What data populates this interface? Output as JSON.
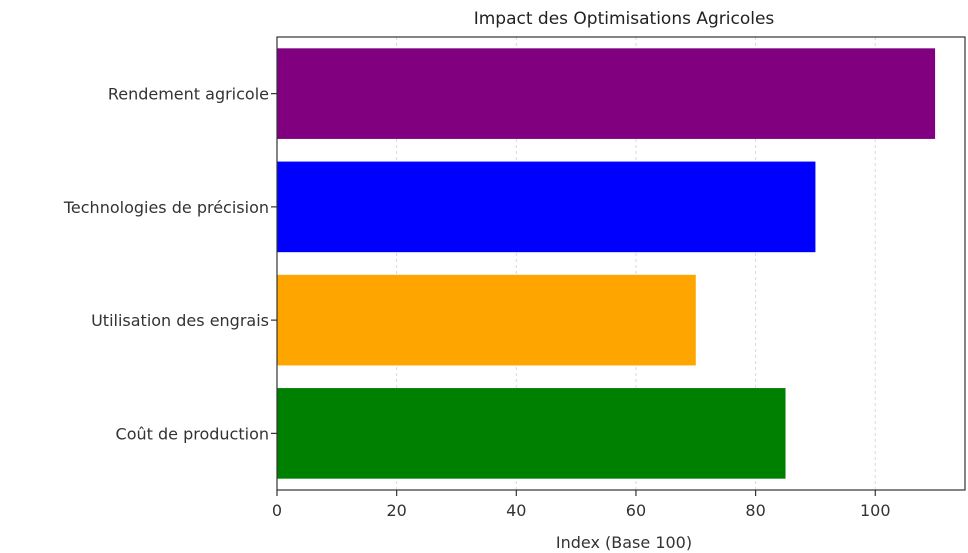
{
  "chart_data": {
    "type": "bar",
    "orientation": "horizontal",
    "title": "Impact des Optimisations Agricoles",
    "xlabel": "Index (Base 100)",
    "ylabel": "",
    "xlim": [
      0,
      115
    ],
    "xticks": [
      0,
      20,
      40,
      60,
      80,
      100
    ],
    "grid": "x-dashed",
    "categories": [
      "Rendement agricole",
      "Technologies de précision",
      "Utilisation des engrais",
      "Coût de production"
    ],
    "values": [
      110,
      90,
      70,
      85
    ],
    "colors": [
      "#800080",
      "#0000ff",
      "#ffa500",
      "#008000"
    ]
  }
}
